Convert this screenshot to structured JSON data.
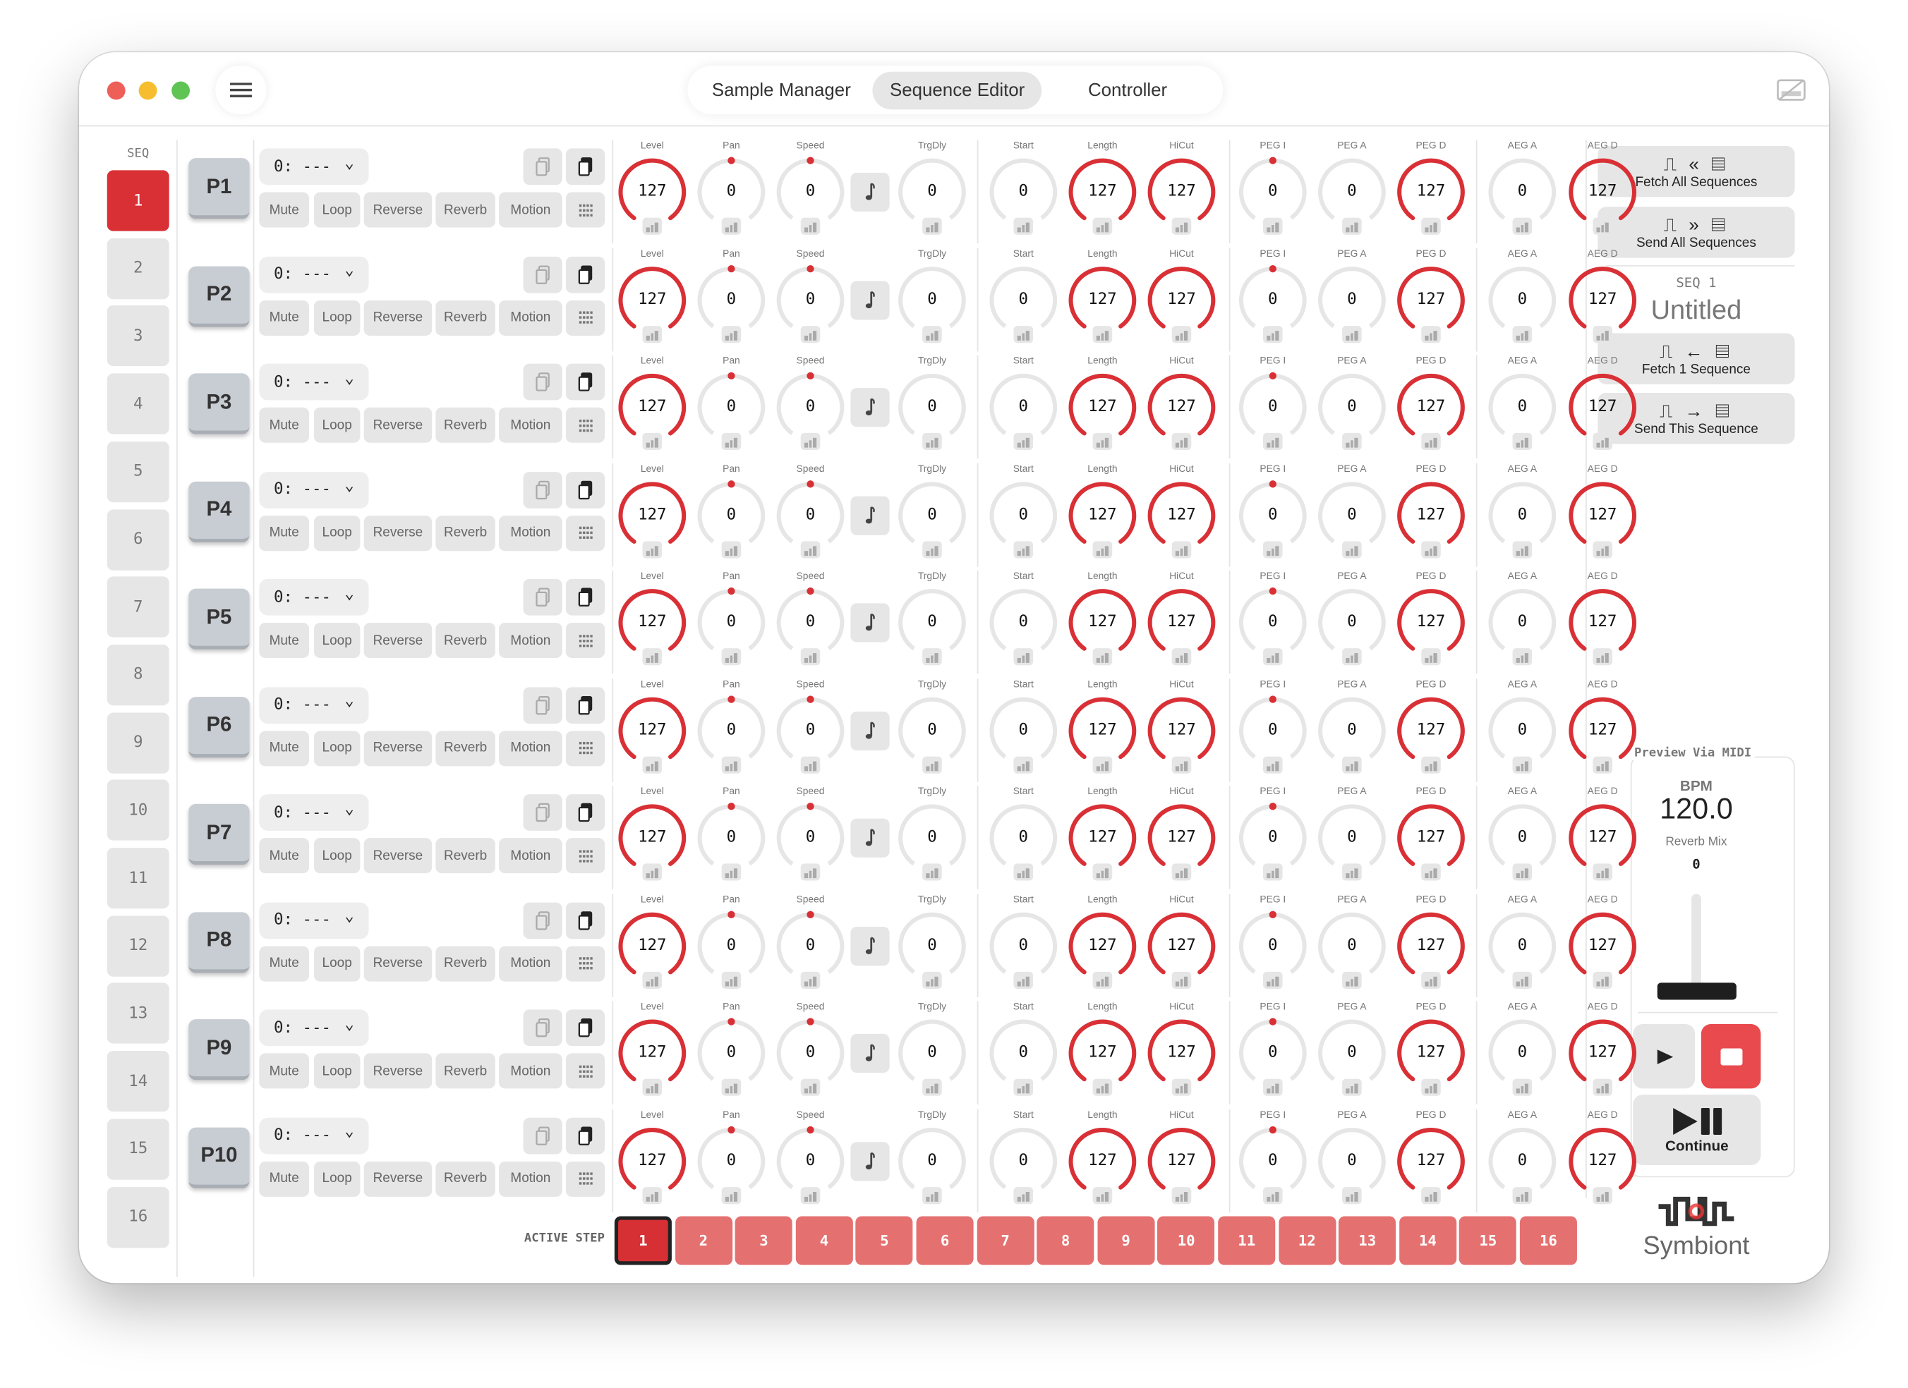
{
  "window": {
    "traffic_lights": [
      "#ee5f58",
      "#f6be2f",
      "#5fc454"
    ],
    "tabs": [
      {
        "label": "Sample Manager",
        "active": false
      },
      {
        "label": "Sequence Editor",
        "active": true
      },
      {
        "label": "Controller",
        "active": false
      }
    ],
    "menu_icon": "hamburger-icon",
    "midi_icon": "midi-disconnected-icon"
  },
  "colors": {
    "accent": "#d93036",
    "step": "#e57070",
    "track": "#e6e6e6",
    "button": "#e6e6e6"
  },
  "sequences": {
    "label": "SEQ",
    "items": [
      "1",
      "2",
      "3",
      "4",
      "5",
      "6",
      "7",
      "8",
      "9",
      "10",
      "11",
      "12",
      "13",
      "14",
      "15",
      "16"
    ],
    "active": "1"
  },
  "patterns": {
    "buttons": [
      "Mute",
      "Loop",
      "Reverse",
      "Reverb",
      "Motion"
    ],
    "knob_labels": [
      "Level",
      "Pan",
      "Speed",
      "TrgDly",
      "Start",
      "Length",
      "HiCut",
      "PEG I",
      "PEG A",
      "PEG D",
      "AEG A",
      "AEG D"
    ],
    "knob_bipolar": [
      false,
      true,
      true,
      false,
      false,
      false,
      false,
      true,
      false,
      false,
      false,
      false
    ],
    "knob_max": 127,
    "rows": [
      {
        "name": "P1",
        "sample": "0: ---",
        "values": [
          127,
          0,
          0,
          0,
          0,
          127,
          127,
          0,
          0,
          127,
          0,
          127
        ]
      },
      {
        "name": "P2",
        "sample": "0: ---",
        "values": [
          127,
          0,
          0,
          0,
          0,
          127,
          127,
          0,
          0,
          127,
          0,
          127
        ]
      },
      {
        "name": "P3",
        "sample": "0: ---",
        "values": [
          127,
          0,
          0,
          0,
          0,
          127,
          127,
          0,
          0,
          127,
          0,
          127
        ]
      },
      {
        "name": "P4",
        "sample": "0: ---",
        "values": [
          127,
          0,
          0,
          0,
          0,
          127,
          127,
          0,
          0,
          127,
          0,
          127
        ]
      },
      {
        "name": "P5",
        "sample": "0: ---",
        "values": [
          127,
          0,
          0,
          0,
          0,
          127,
          127,
          0,
          0,
          127,
          0,
          127
        ]
      },
      {
        "name": "P6",
        "sample": "0: ---",
        "values": [
          127,
          0,
          0,
          0,
          0,
          127,
          127,
          0,
          0,
          127,
          0,
          127
        ]
      },
      {
        "name": "P7",
        "sample": "0: ---",
        "values": [
          127,
          0,
          0,
          0,
          0,
          127,
          127,
          0,
          0,
          127,
          0,
          127
        ]
      },
      {
        "name": "P8",
        "sample": "0: ---",
        "values": [
          127,
          0,
          0,
          0,
          0,
          127,
          127,
          0,
          0,
          127,
          0,
          127
        ]
      },
      {
        "name": "P9",
        "sample": "0: ---",
        "values": [
          127,
          0,
          0,
          0,
          0,
          127,
          127,
          0,
          0,
          127,
          0,
          127
        ]
      },
      {
        "name": "P10",
        "sample": "0: ---",
        "values": [
          127,
          0,
          0,
          0,
          0,
          127,
          127,
          0,
          0,
          127,
          0,
          127
        ]
      }
    ]
  },
  "right_panel": {
    "fetch_all": "Fetch All Sequences",
    "send_all": "Send All Sequences",
    "seq_label": "SEQ 1",
    "seq_name": "Untitled",
    "fetch_one": "Fetch 1 Sequence",
    "send_this": "Send This Sequence"
  },
  "preview": {
    "title": "Preview Via MIDI",
    "bpm_label": "BPM",
    "bpm": "120.0",
    "reverb_label": "Reverb Mix",
    "reverb_value": "0",
    "reverb_level": 0,
    "continue_label": "Continue"
  },
  "active_step": {
    "label": "ACTIVE STEP",
    "steps": [
      "1",
      "2",
      "3",
      "4",
      "5",
      "6",
      "7",
      "8",
      "9",
      "10",
      "11",
      "12",
      "13",
      "14",
      "15",
      "16"
    ],
    "active": "1"
  },
  "brand": {
    "name": "Symbiont"
  }
}
